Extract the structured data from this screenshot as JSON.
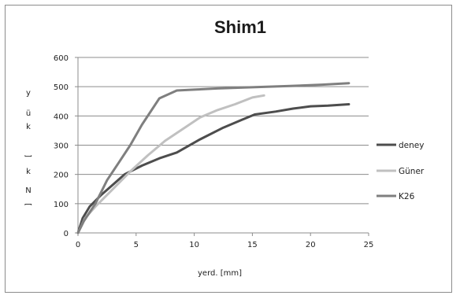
{
  "chart_data": {
    "type": "line",
    "title": "Shim1",
    "xlabel": "yerd. [mm]",
    "ylabel": "yük [kN]",
    "ylabel_chars": [
      "y",
      "ü",
      "k",
      "",
      "[",
      "k",
      "N",
      "]"
    ],
    "xlim": [
      0,
      25
    ],
    "ylim": [
      0,
      600
    ],
    "xticks": [
      0,
      5,
      10,
      15,
      20,
      25
    ],
    "yticks": [
      0,
      100,
      200,
      300,
      400,
      500,
      600
    ],
    "grid": "horizontal",
    "legend_position": "right",
    "series": [
      {
        "name": "deney",
        "color": "#4d4d4d",
        "points": [
          [
            0,
            0
          ],
          [
            0.4,
            50
          ],
          [
            1,
            90
          ],
          [
            2,
            130
          ],
          [
            3,
            165
          ],
          [
            4,
            200
          ],
          [
            5.5,
            230
          ],
          [
            7,
            255
          ],
          [
            8.5,
            275
          ],
          [
            10.5,
            320
          ],
          [
            12.5,
            360
          ],
          [
            14,
            385
          ],
          [
            15.2,
            405
          ],
          [
            17,
            415
          ],
          [
            18.5,
            425
          ],
          [
            20,
            433
          ],
          [
            21.5,
            435
          ],
          [
            23.3,
            440
          ]
        ]
      },
      {
        "name": "Güner",
        "color": "#c0c0c0",
        "points": [
          [
            0,
            0
          ],
          [
            0.6,
            50
          ],
          [
            1.5,
            90
          ],
          [
            3,
            150
          ],
          [
            4.5,
            210
          ],
          [
            6,
            265
          ],
          [
            7.5,
            315
          ],
          [
            9,
            355
          ],
          [
            10.5,
            395
          ],
          [
            12,
            420
          ],
          [
            13.5,
            440
          ],
          [
            15,
            463
          ],
          [
            16,
            470
          ]
        ]
      },
      {
        "name": "K26",
        "color": "#7f7f7f",
        "points": [
          [
            0,
            0
          ],
          [
            0.5,
            40
          ],
          [
            1.5,
            100
          ],
          [
            2.5,
            180
          ],
          [
            3.5,
            240
          ],
          [
            4.5,
            300
          ],
          [
            5.5,
            370
          ],
          [
            7,
            460
          ],
          [
            8.5,
            487
          ],
          [
            10,
            490
          ],
          [
            12,
            494
          ],
          [
            15,
            498
          ],
          [
            18,
            502
          ],
          [
            21,
            507
          ],
          [
            23.3,
            512
          ]
        ]
      }
    ]
  }
}
